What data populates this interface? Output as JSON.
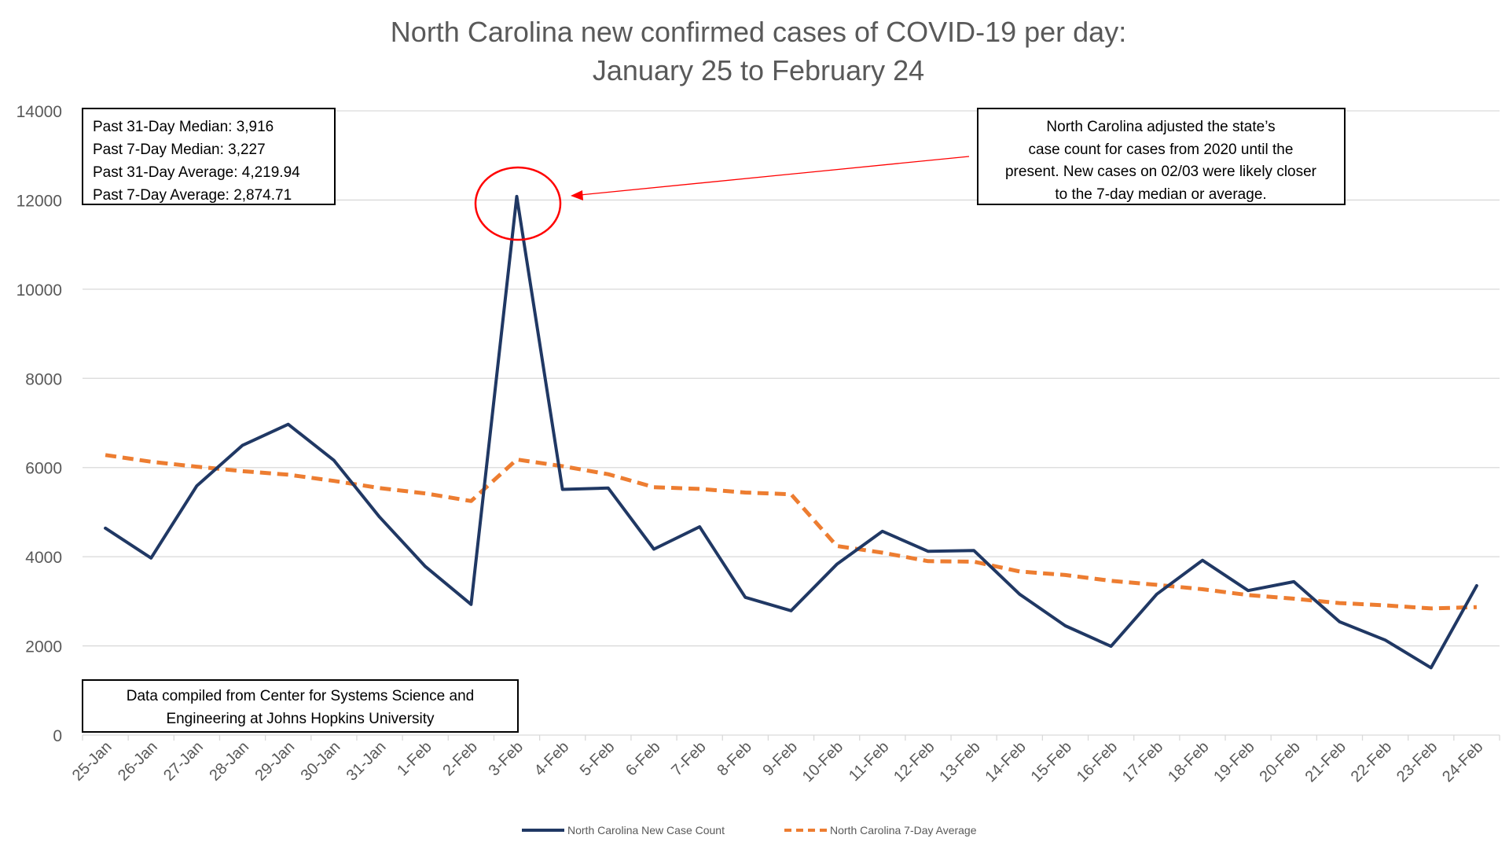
{
  "chart_data": {
    "type": "line",
    "title_line1": "North Carolina new confirmed cases of COVID-19 per day:",
    "title_line2": "January 25 to February 24",
    "xlabel": "",
    "ylabel": "",
    "ylim": [
      0,
      14000
    ],
    "yticks": [
      0,
      2000,
      4000,
      6000,
      8000,
      10000,
      12000,
      14000
    ],
    "grid": true,
    "legend_position": "bottom",
    "categories": [
      "25-Jan",
      "26-Jan",
      "27-Jan",
      "28-Jan",
      "29-Jan",
      "30-Jan",
      "31-Jan",
      "1-Feb",
      "2-Feb",
      "3-Feb",
      "4-Feb",
      "5-Feb",
      "6-Feb",
      "7-Feb",
      "8-Feb",
      "9-Feb",
      "10-Feb",
      "11-Feb",
      "12-Feb",
      "13-Feb",
      "14-Feb",
      "15-Feb",
      "16-Feb",
      "17-Feb",
      "18-Feb",
      "19-Feb",
      "20-Feb",
      "21-Feb",
      "22-Feb",
      "23-Feb",
      "24-Feb"
    ],
    "series": [
      {
        "name": "North Carolina New Case Count",
        "color": "#203864",
        "style": "solid",
        "values": [
          4640,
          3970,
          5590,
          6500,
          6970,
          6160,
          4890,
          3780,
          2930,
          12080,
          5510,
          5540,
          4170,
          4670,
          3090,
          2790,
          3830,
          4570,
          4120,
          4140,
          3160,
          2450,
          1990,
          3160,
          3920,
          3240,
          3440,
          2540,
          2130,
          1510,
          3350
        ]
      },
      {
        "name": "North Carolina 7-Day Average",
        "color": "#ED7D31",
        "style": "dashed",
        "values": [
          6280,
          6130,
          6020,
          5920,
          5840,
          5700,
          5540,
          5420,
          5250,
          6180,
          6030,
          5850,
          5560,
          5520,
          5440,
          5400,
          4240,
          4090,
          3900,
          3890,
          3670,
          3590,
          3460,
          3370,
          3270,
          3140,
          3060,
          2960,
          2910,
          2840,
          2870
        ]
      }
    ],
    "stats_box": {
      "lines": [
        "Past 31-Day Median: 3,916",
        "Past 7-Day Median: 3,227",
        "Past 31-Day Average: 4,219.94",
        "Past 7-Day Average: 2,874.71"
      ]
    },
    "note_box": {
      "lines": [
        "North Carolina adjusted the state’s",
        "case count for cases from 2020 until the",
        "present. New cases on 02/03 were likely closer",
        "to the 7-day median or average."
      ],
      "highlight_category": "3-Feb",
      "highlight_color": "#FF0000"
    },
    "source_box": {
      "lines": [
        "Data compiled from Center for Systems Science and",
        "Engineering at Johns Hopkins University"
      ]
    }
  }
}
